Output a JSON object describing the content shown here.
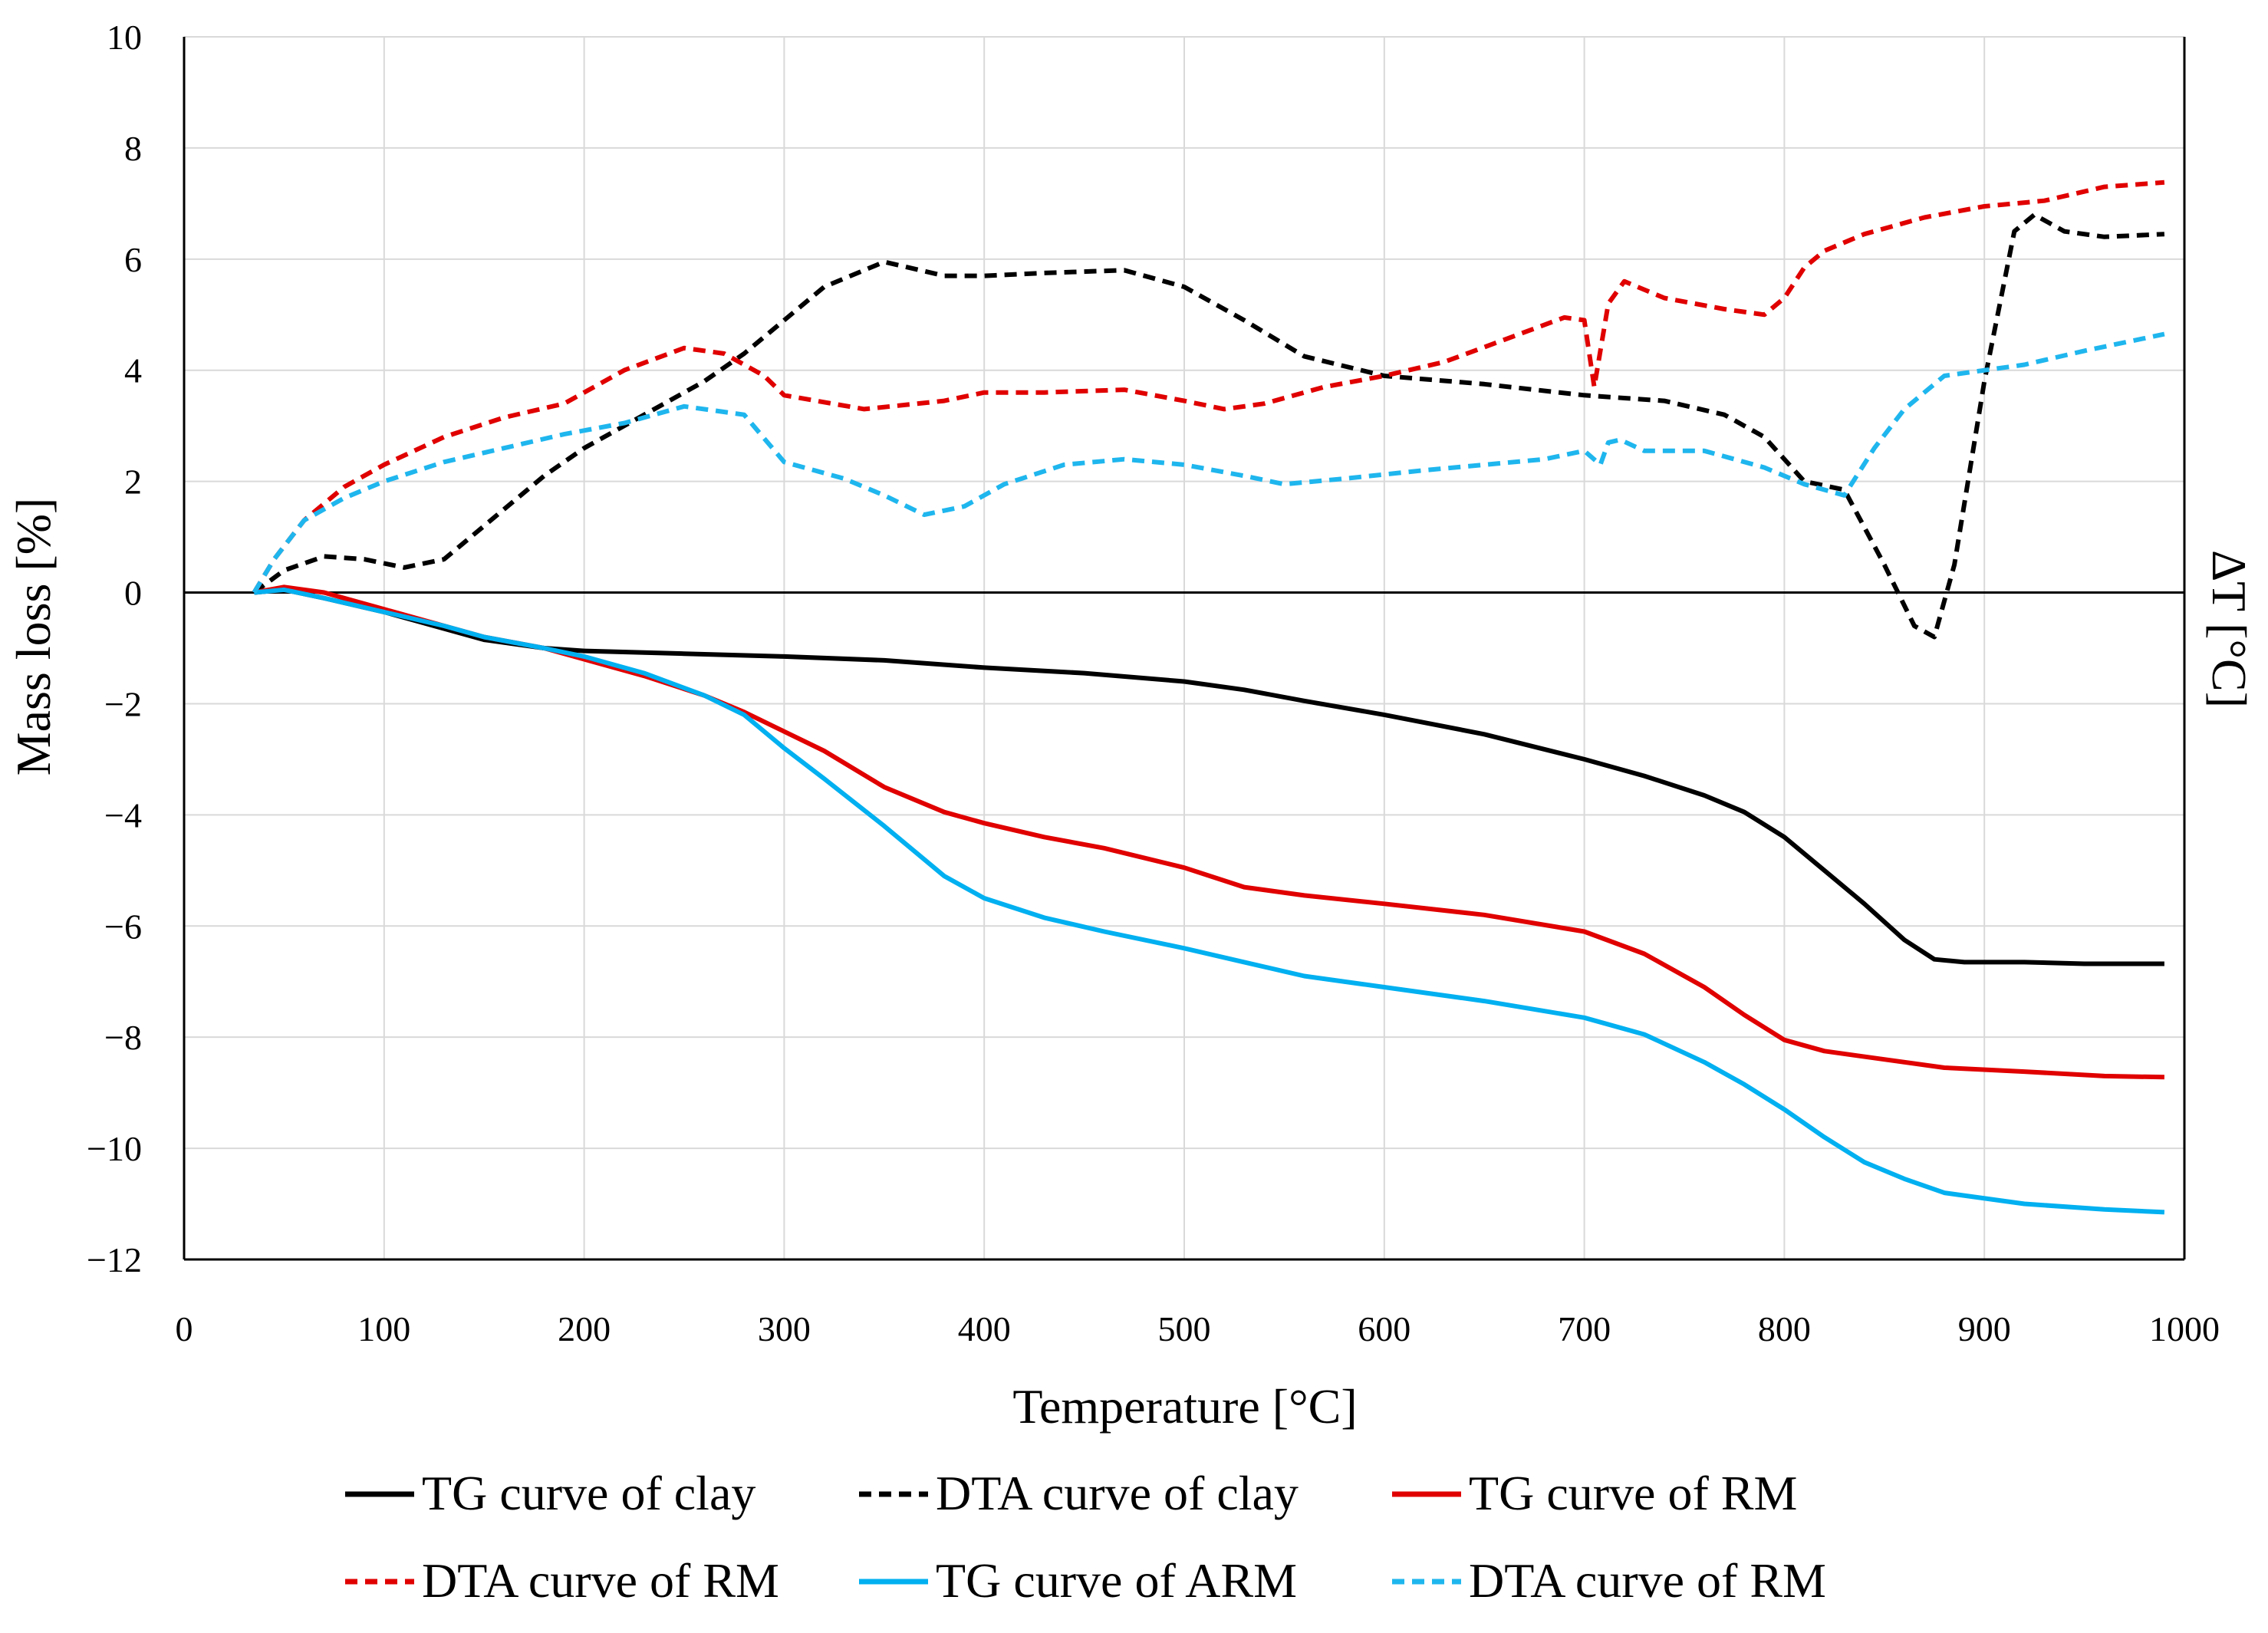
{
  "chart_data": {
    "type": "line",
    "title": "",
    "xlabel": "Temperature [°C]",
    "ylabel": "Mass loss [%]",
    "y2label": "ΔT [°C]",
    "xlim": [
      0,
      1000
    ],
    "ylim": [
      -12,
      10
    ],
    "x_ticks": [
      0,
      100,
      200,
      300,
      400,
      500,
      600,
      700,
      800,
      900,
      1000
    ],
    "y_ticks": [
      10,
      8,
      6,
      4,
      2,
      0,
      -2,
      -4,
      -6,
      -8,
      -10,
      -12
    ],
    "x_tick_labels": [
      "0",
      "100",
      "200",
      "300",
      "400",
      "500",
      "600",
      "700",
      "800",
      "900",
      "1000"
    ],
    "y_tick_labels": [
      "10",
      "8",
      "6",
      "4",
      "2",
      "0",
      "−2",
      "−4",
      "−6",
      "−8",
      "−10",
      "−12"
    ],
    "grid": true,
    "legend_position": "bottom",
    "series": [
      {
        "name": "TG curve of clay",
        "color": "#000000",
        "dash": "solid",
        "x": [
          35,
          50,
          70,
          100,
          130,
          150,
          180,
          200,
          250,
          300,
          350,
          400,
          450,
          500,
          530,
          560,
          600,
          650,
          700,
          730,
          760,
          780,
          800,
          820,
          840,
          860,
          875,
          890,
          920,
          950,
          990
        ],
        "y": [
          0,
          0.05,
          -0.1,
          -0.35,
          -0.65,
          -0.85,
          -1.0,
          -1.05,
          -1.1,
          -1.15,
          -1.22,
          -1.35,
          -1.45,
          -1.6,
          -1.75,
          -1.95,
          -2.2,
          -2.55,
          -3.0,
          -3.3,
          -3.65,
          -3.95,
          -4.4,
          -5.0,
          -5.6,
          -6.25,
          -6.6,
          -6.65,
          -6.65,
          -6.68,
          -6.68
        ]
      },
      {
        "name": "DTA curve of clay",
        "color": "#000000",
        "dash": "dashed",
        "x": [
          35,
          50,
          70,
          90,
          110,
          130,
          150,
          180,
          200,
          230,
          260,
          280,
          300,
          320,
          350,
          380,
          400,
          430,
          470,
          500,
          530,
          560,
          600,
          650,
          700,
          720,
          740,
          770,
          790,
          810,
          830,
          850,
          865,
          875,
          885,
          900,
          915,
          925,
          940,
          960,
          990
        ],
        "y": [
          0,
          0.4,
          0.65,
          0.6,
          0.45,
          0.6,
          1.2,
          2.1,
          2.6,
          3.2,
          3.8,
          4.3,
          4.9,
          5.5,
          5.95,
          5.7,
          5.7,
          5.75,
          5.8,
          5.5,
          4.9,
          4.25,
          3.9,
          3.75,
          3.55,
          3.5,
          3.45,
          3.2,
          2.8,
          2.0,
          1.85,
          0.5,
          -0.6,
          -0.8,
          0.5,
          3.8,
          6.5,
          6.8,
          6.5,
          6.4,
          6.45
        ]
      },
      {
        "name": "TG curve of RM",
        "color": "#e00000",
        "dash": "solid",
        "x": [
          35,
          50,
          70,
          100,
          130,
          150,
          180,
          200,
          230,
          260,
          280,
          300,
          320,
          350,
          380,
          400,
          430,
          460,
          500,
          530,
          560,
          600,
          650,
          700,
          730,
          760,
          780,
          800,
          820,
          850,
          880,
          920,
          960,
          990
        ],
        "y": [
          0,
          0.1,
          0.0,
          -0.3,
          -0.6,
          -0.8,
          -1.0,
          -1.2,
          -1.5,
          -1.85,
          -2.15,
          -2.5,
          -2.85,
          -3.5,
          -3.95,
          -4.15,
          -4.4,
          -4.6,
          -4.95,
          -5.3,
          -5.45,
          -5.6,
          -5.8,
          -6.1,
          -6.5,
          -7.1,
          -7.6,
          -8.05,
          -8.25,
          -8.4,
          -8.55,
          -8.62,
          -8.7,
          -8.72
        ]
      },
      {
        "name": "DTA curve of RM",
        "color": "#e00000",
        "dash": "dashed",
        "x": [
          35,
          45,
          60,
          80,
          100,
          130,
          160,
          190,
          220,
          250,
          270,
          290,
          300,
          340,
          380,
          400,
          430,
          470,
          500,
          520,
          540,
          570,
          600,
          630,
          660,
          690,
          700,
          705,
          712,
          720,
          740,
          770,
          790,
          800,
          810,
          820,
          840,
          870,
          900,
          930,
          960,
          990
        ],
        "y": [
          0,
          0.6,
          1.3,
          1.9,
          2.3,
          2.8,
          3.15,
          3.4,
          4.0,
          4.4,
          4.3,
          3.9,
          3.55,
          3.3,
          3.45,
          3.6,
          3.6,
          3.65,
          3.45,
          3.3,
          3.4,
          3.7,
          3.9,
          4.15,
          4.55,
          4.95,
          4.9,
          3.7,
          5.2,
          5.6,
          5.3,
          5.1,
          5.0,
          5.3,
          5.85,
          6.15,
          6.45,
          6.75,
          6.95,
          7.05,
          7.3,
          7.38
        ]
      },
      {
        "name": "TG curve of ARM",
        "color": "#00b0f0",
        "dash": "solid",
        "x": [
          35,
          50,
          70,
          100,
          130,
          150,
          180,
          200,
          230,
          260,
          280,
          300,
          320,
          350,
          380,
          400,
          430,
          460,
          500,
          530,
          560,
          600,
          650,
          700,
          730,
          760,
          780,
          800,
          820,
          840,
          860,
          880,
          920,
          960,
          990
        ],
        "y": [
          0,
          0.05,
          -0.1,
          -0.35,
          -0.6,
          -0.8,
          -1.0,
          -1.15,
          -1.45,
          -1.85,
          -2.2,
          -2.8,
          -3.35,
          -4.2,
          -5.1,
          -5.5,
          -5.85,
          -6.1,
          -6.4,
          -6.65,
          -6.9,
          -7.1,
          -7.35,
          -7.65,
          -7.95,
          -8.45,
          -8.85,
          -9.3,
          -9.8,
          -10.25,
          -10.55,
          -10.8,
          -11.0,
          -11.1,
          -11.15
        ]
      },
      {
        "name": "DTA curve of RM",
        "color": "#1fb6ee",
        "dash": "dashed",
        "x": [
          35,
          45,
          60,
          80,
          100,
          130,
          160,
          190,
          220,
          250,
          280,
          300,
          330,
          350,
          370,
          390,
          410,
          440,
          470,
          500,
          530,
          550,
          580,
          620,
          650,
          680,
          700,
          708,
          712,
          718,
          730,
          760,
          790,
          810,
          830,
          845,
          860,
          880,
          920,
          950,
          990
        ],
        "y": [
          0,
          0.6,
          1.3,
          1.7,
          2.0,
          2.35,
          2.6,
          2.85,
          3.05,
          3.35,
          3.2,
          2.35,
          2.05,
          1.75,
          1.4,
          1.55,
          1.95,
          2.3,
          2.4,
          2.3,
          2.1,
          1.95,
          2.05,
          2.2,
          2.3,
          2.4,
          2.55,
          2.3,
          2.7,
          2.75,
          2.55,
          2.55,
          2.25,
          1.95,
          1.75,
          2.6,
          3.3,
          3.9,
          4.1,
          4.35,
          4.65
        ]
      }
    ]
  },
  "legend": {
    "items": [
      {
        "label": "TG curve of clay",
        "color": "#000000",
        "dash": "solid"
      },
      {
        "label": "DTA curve of clay",
        "color": "#000000",
        "dash": "dashed"
      },
      {
        "label": "TG curve of RM",
        "color": "#e00000",
        "dash": "solid"
      },
      {
        "label": "DTA curve of RM",
        "color": "#e00000",
        "dash": "dashed"
      },
      {
        "label": "TG curve of ARM",
        "color": "#00b0f0",
        "dash": "solid"
      },
      {
        "label": "DTA curve of RM",
        "color": "#1fb6ee",
        "dash": "dashed"
      }
    ]
  }
}
